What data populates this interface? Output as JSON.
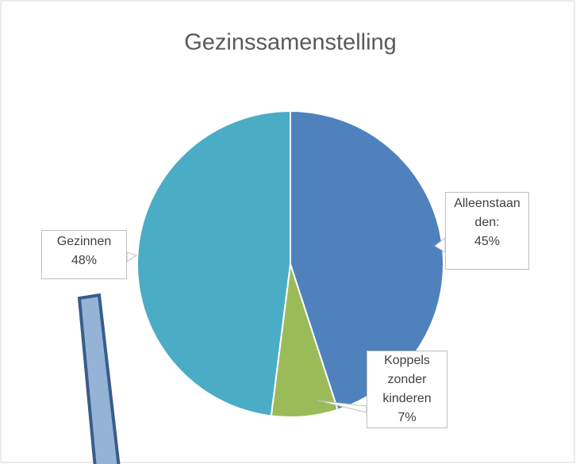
{
  "chart_data": {
    "type": "pie",
    "title": "Gezinssamenstelling",
    "categories": [
      "Alleenstaanden:",
      "Koppels zonder kinderen",
      "Gezinnen"
    ],
    "values": [
      45,
      7,
      48
    ],
    "value_labels": [
      "45%",
      "7%",
      "48%"
    ],
    "colors": [
      "#4f81bd",
      "#9bbb59",
      "#4bacc6"
    ]
  }
}
